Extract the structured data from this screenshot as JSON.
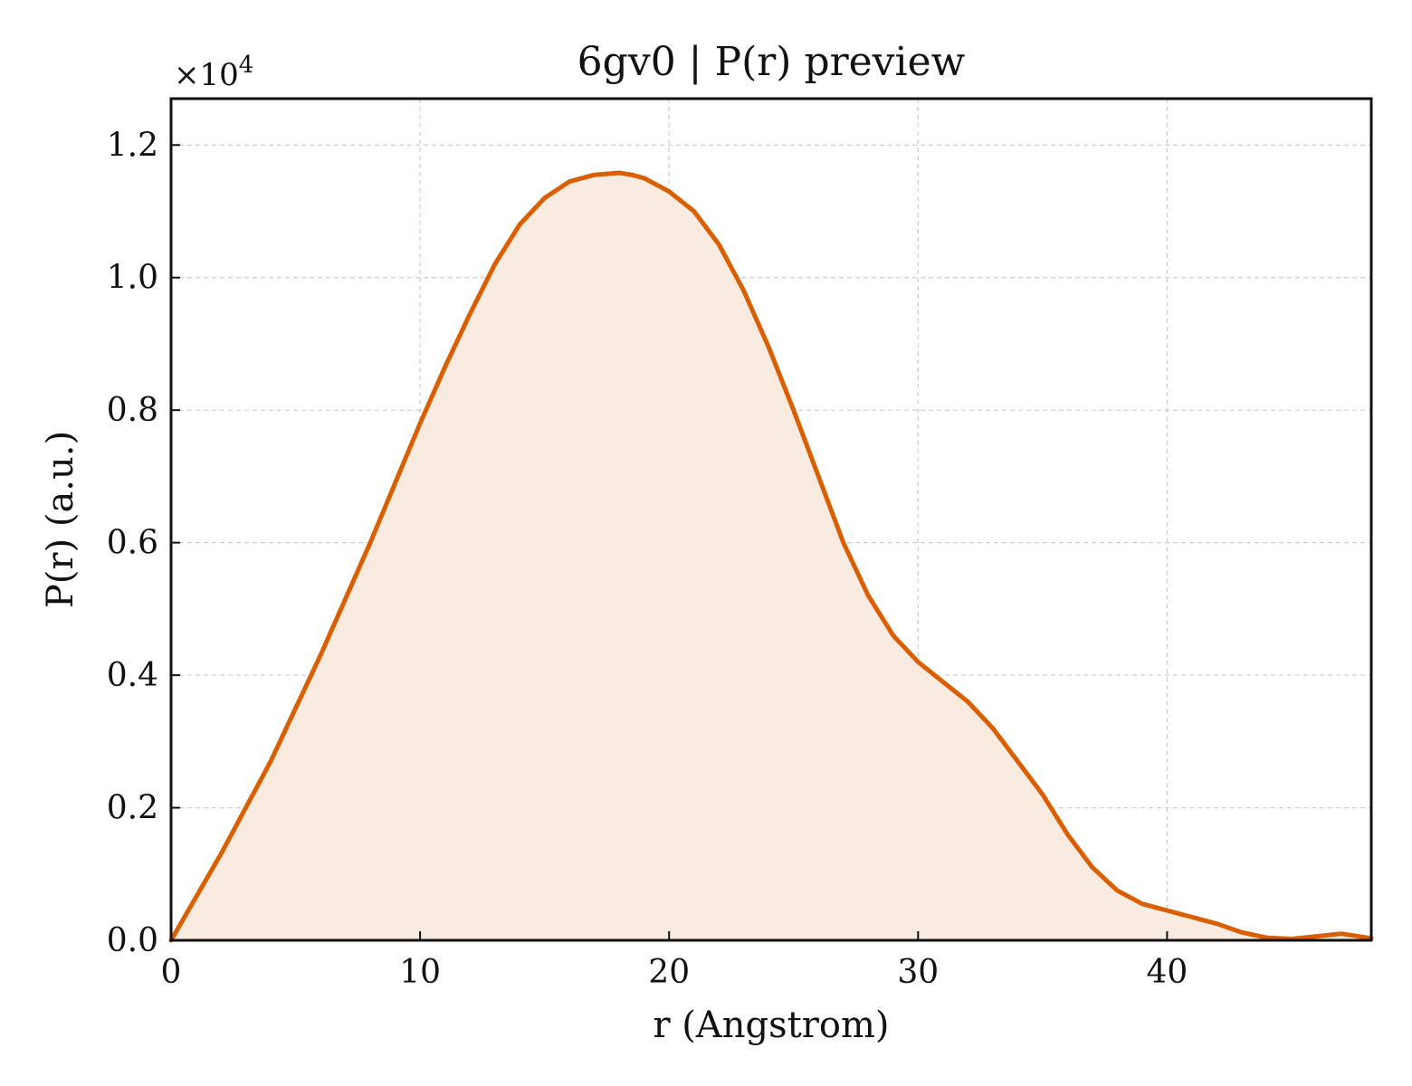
{
  "chart_data": {
    "type": "area",
    "title": "6gv0 | P(r) preview",
    "xlabel": "r (Angstrom)",
    "ylabel": "P(r) (a.u.)",
    "y_multiplier": "×10",
    "y_multiplier_exponent": "4",
    "xlim": [
      0,
      48.2
    ],
    "ylim": [
      0,
      1.27
    ],
    "x_ticks": [
      0,
      10,
      20,
      30,
      40
    ],
    "x_tick_labels": [
      "0",
      "10",
      "20",
      "30",
      "40"
    ],
    "y_ticks": [
      0,
      0.2,
      0.4,
      0.6,
      0.8,
      1.0,
      1.2
    ],
    "y_tick_labels": [
      "0.0",
      "0.2",
      "0.4",
      "0.6",
      "0.8",
      "1.0",
      "1.2"
    ],
    "grid": true,
    "colors": {
      "line": "#d95f02",
      "fill": "#f9ebe0"
    },
    "series": [
      {
        "x": [
          0,
          1,
          2,
          3,
          4,
          5,
          6,
          7,
          8,
          9,
          10,
          11,
          12,
          13,
          14,
          15,
          16,
          17,
          18,
          18.5,
          19,
          20,
          21,
          22,
          23,
          24,
          25,
          26,
          27,
          28,
          29,
          30,
          31,
          32,
          33,
          34,
          35,
          36,
          37,
          38,
          39,
          40,
          41,
          42,
          43,
          44,
          45,
          46,
          47,
          48.2
        ],
        "y": [
          0,
          0.065,
          0.13,
          0.2,
          0.27,
          0.35,
          0.43,
          0.515,
          0.6,
          0.69,
          0.78,
          0.865,
          0.945,
          1.02,
          1.08,
          1.12,
          1.145,
          1.155,
          1.158,
          1.155,
          1.15,
          1.13,
          1.1,
          1.05,
          0.98,
          0.895,
          0.8,
          0.7,
          0.6,
          0.52,
          0.46,
          0.42,
          0.39,
          0.36,
          0.32,
          0.27,
          0.22,
          0.16,
          0.11,
          0.075,
          0.055,
          0.045,
          0.035,
          0.025,
          0.012,
          0.004,
          0.002,
          0.006,
          0.01,
          0.003
        ]
      }
    ]
  }
}
